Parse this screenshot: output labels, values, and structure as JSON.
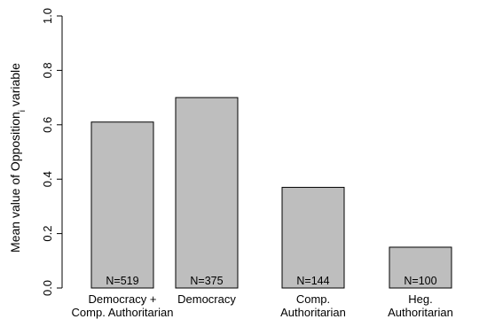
{
  "chart_data": {
    "type": "bar",
    "ylabel": "Mean value of Opposition",
    "ylabel_subscript": "i",
    "ylabel_suffix": " variable",
    "ylim": [
      0,
      1
    ],
    "yticks": [
      "0.0",
      "0.2",
      "0.4",
      "0.6",
      "0.8",
      "1.0"
    ],
    "categories": [
      [
        "Democracy +",
        "Comp. Authoritarian"
      ],
      [
        "Democracy"
      ],
      [
        "Comp.",
        "Authoritarian"
      ],
      [
        "Heg.",
        "Authoritarian"
      ]
    ],
    "values": [
      0.61,
      0.7,
      0.37,
      0.15
    ],
    "n_labels": [
      "N=519",
      "N=375",
      "N=144",
      "N=100"
    ],
    "bar_color": "#bebebe",
    "grid": false
  }
}
